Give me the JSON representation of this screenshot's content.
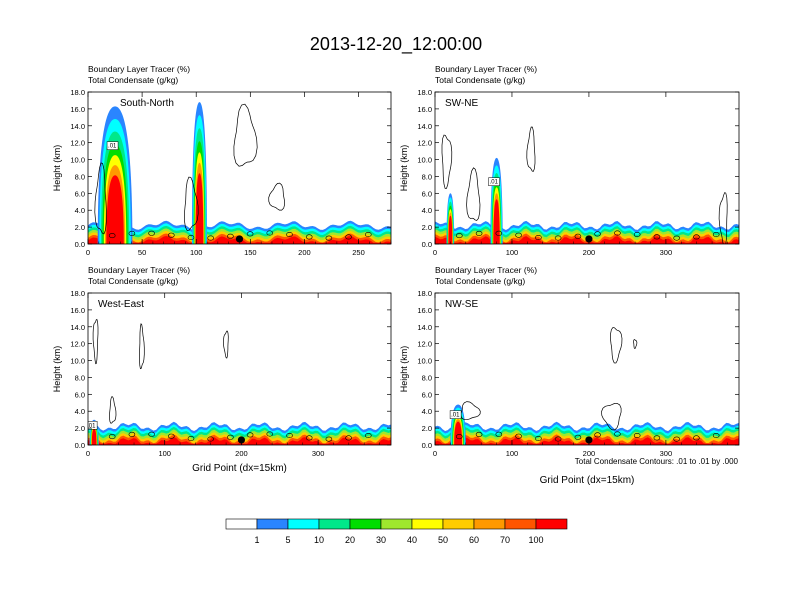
{
  "title": "2013-12-20_12:00:00",
  "field_labels": {
    "tracer": "Boundary Layer Tracer   (%)",
    "condensate": "Total Condensate   (g/kg)"
  },
  "axis_labels": {
    "y": "Height (km)",
    "x": "Grid Point (dx=15km)"
  },
  "contour_note": "Total Condensate Contours: .01 to .01 by .000",
  "contour_label": ".01",
  "colorbar": {
    "levels": [
      "1",
      "5",
      "10",
      "20",
      "30",
      "40",
      "50",
      "60",
      "70",
      "100"
    ],
    "colors": [
      "#ffffff",
      "#2a85ff",
      "#00ffff",
      "#00e88a",
      "#00dd00",
      "#9fe82e",
      "#ffff00",
      "#ffcc00",
      "#ff9900",
      "#ff5500",
      "#ff0000"
    ]
  },
  "chart_data": [
    {
      "type": "heatmap",
      "panel_label": "South-North",
      "ylabel": "Height (km)",
      "xlabel": "",
      "xlim": [
        0,
        280
      ],
      "ylim": [
        0,
        18
      ],
      "xticks": [
        "0",
        "50",
        "100",
        "150",
        "200",
        "250"
      ],
      "yticks": [
        "0.0",
        "2.0",
        "4.0",
        "6.0",
        "8.0",
        "10.0",
        "12.0",
        "14.0",
        "16.0",
        "18.0"
      ],
      "marker_x": 140,
      "plumes": [
        {
          "x_center": 25,
          "half_width": 16,
          "top_km": 16.3
        },
        {
          "x_center": 103,
          "half_width": 7,
          "top_km": 16.8
        }
      ],
      "contours": [
        {
          "x": 95,
          "y": 4.5,
          "rx": 6,
          "ry": 3
        },
        {
          "x": 175,
          "y": 5.5,
          "rx": 7,
          "ry": 1.5
        },
        {
          "x": 145,
          "y": 12.5,
          "rx": 10,
          "ry": 3.5
        },
        {
          "x": 12,
          "y": 5,
          "rx": 5,
          "ry": 4
        }
      ]
    },
    {
      "type": "heatmap",
      "panel_label": "SW-NE",
      "ylabel": "Height (km)",
      "xlabel": "",
      "xlim": [
        0,
        395
      ],
      "ylim": [
        0,
        18
      ],
      "xticks": [
        "0",
        "100",
        "200",
        "300"
      ],
      "yticks": [
        "0.0",
        "2.0",
        "4.0",
        "6.0",
        "8.0",
        "10.0",
        "12.0",
        "14.0",
        "16.0",
        "18.0"
      ],
      "marker_x": 200,
      "plumes": [
        {
          "x_center": 80,
          "half_width": 8,
          "top_km": 10.2
        },
        {
          "x_center": 20,
          "half_width": 5,
          "top_km": 6.0
        }
      ],
      "contours": [
        {
          "x": 50,
          "y": 5.5,
          "rx": 8,
          "ry": 3
        },
        {
          "x": 125,
          "y": 11,
          "rx": 5,
          "ry": 2.5
        },
        {
          "x": 15,
          "y": 10,
          "rx": 6,
          "ry": 3
        },
        {
          "x": 375,
          "y": 3,
          "rx": 5,
          "ry": 3
        }
      ]
    },
    {
      "type": "heatmap",
      "panel_label": "West-East",
      "ylabel": "Height (km)",
      "xlabel": "Grid Point (dx=15km)",
      "xlim": [
        0,
        395
      ],
      "ylim": [
        0,
        18
      ],
      "xticks": [
        "0",
        "100",
        "200",
        "300"
      ],
      "yticks": [
        "0.0",
        "2.0",
        "4.0",
        "6.0",
        "8.0",
        "10.0",
        "12.0",
        "14.0",
        "16.0",
        "18.0"
      ],
      "marker_x": 200,
      "plumes": [
        {
          "x_center": 8,
          "half_width": 6,
          "top_km": 3.0
        }
      ],
      "contours": [
        {
          "x": 10,
          "y": 12.5,
          "rx": 3,
          "ry": 2.5
        },
        {
          "x": 70,
          "y": 11.5,
          "rx": 3,
          "ry": 2.5
        },
        {
          "x": 180,
          "y": 12,
          "rx": 3,
          "ry": 1.5
        },
        {
          "x": 32,
          "y": 4,
          "rx": 4,
          "ry": 1.5
        }
      ]
    },
    {
      "type": "heatmap",
      "panel_label": "NW-SE",
      "ylabel": "Height (km)",
      "xlabel": "Grid Point (dx=15km)",
      "xlim": [
        0,
        395
      ],
      "ylim": [
        0,
        18
      ],
      "xticks": [
        "0",
        "100",
        "200",
        "300"
      ],
      "yticks": [
        "0.0",
        "2.0",
        "4.0",
        "6.0",
        "8.0",
        "10.0",
        "12.0",
        "14.0",
        "16.0",
        "18.0"
      ],
      "marker_x": 200,
      "plumes": [
        {
          "x_center": 30,
          "half_width": 10,
          "top_km": 4.8
        }
      ],
      "contours": [
        {
          "x": 45,
          "y": 4,
          "rx": 12,
          "ry": 1
        },
        {
          "x": 235,
          "y": 12,
          "rx": 7,
          "ry": 2
        },
        {
          "x": 230,
          "y": 3.5,
          "rx": 12,
          "ry": 1.5
        },
        {
          "x": 260,
          "y": 12,
          "rx": 2,
          "ry": 0.5
        }
      ]
    }
  ]
}
